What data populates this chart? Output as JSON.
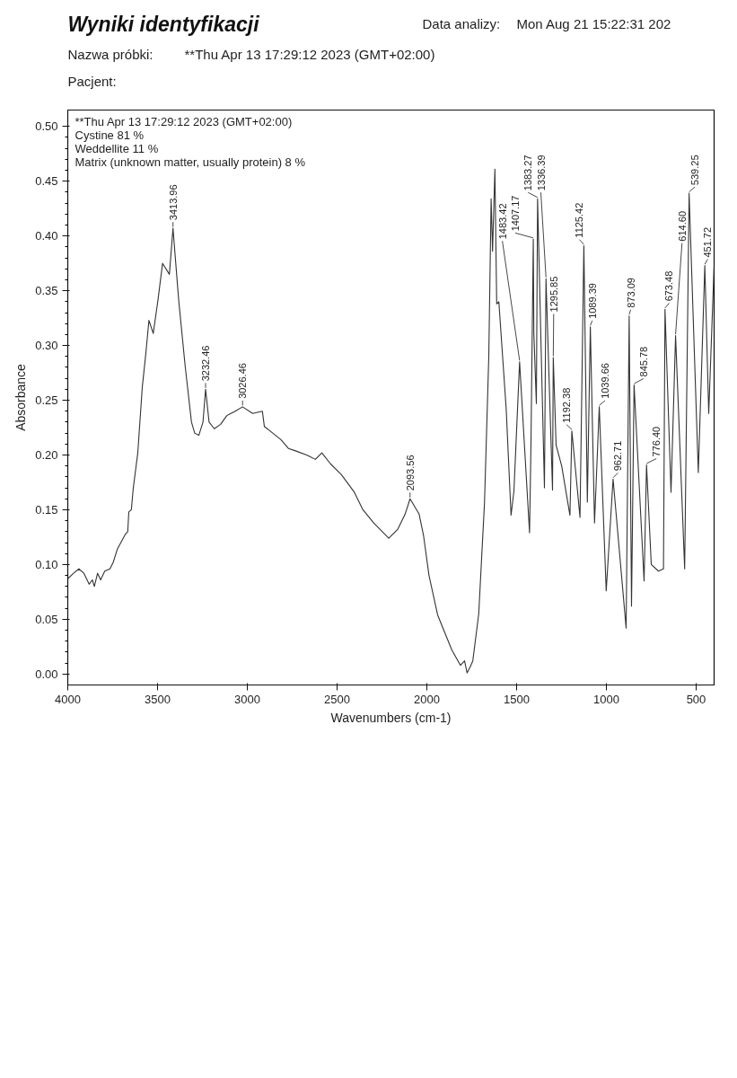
{
  "chart_data": {
    "type": "line",
    "title": "Wyniki identyfikacji",
    "xlabel": "Wavenumbers (cm-1)",
    "ylabel": "Absorbance",
    "color": "#333333",
    "x": [
      4000,
      3968,
      3938,
      3910,
      3881,
      3863,
      3852,
      3834,
      3817,
      3794,
      3765,
      3747,
      3724,
      3678,
      3666,
      3660,
      3646,
      3635,
      3610,
      3585,
      3565,
      3548,
      3524,
      3498,
      3472,
      3434,
      3413.96,
      3382,
      3346,
      3311,
      3293,
      3270,
      3247,
      3232.46,
      3213,
      3184,
      3149,
      3114,
      3067,
      3026.46,
      2970,
      2916,
      2905,
      2874,
      2813,
      2771,
      2735,
      2669,
      2621,
      2585,
      2537,
      2476,
      2404,
      2356,
      2296,
      2248,
      2212,
      2163,
      2121,
      2093.56,
      2043,
      2018,
      1988,
      1940,
      1861,
      1813,
      1790,
      1776,
      1760,
      1744,
      1711,
      1679,
      1655,
      1642,
      1634,
      1621,
      1611,
      1599,
      1558,
      1531,
      1515,
      1483.42,
      1428,
      1420,
      1407.17,
      1404,
      1390,
      1383.27,
      1345,
      1336.39,
      1300,
      1295.85,
      1280,
      1249,
      1203,
      1192.38,
      1147,
      1125.42,
      1106,
      1089.39,
      1066,
      1039.66,
      1001,
      962.71,
      890,
      873.09,
      860,
      845.78,
      790,
      776.4,
      750,
      710,
      682,
      673.48,
      640,
      614.6,
      564,
      539.25,
      488,
      451.72,
      430,
      400
    ],
    "values": [
      0.087,
      0.092,
      0.096,
      0.092,
      0.082,
      0.086,
      0.08,
      0.092,
      0.086,
      0.094,
      0.096,
      0.102,
      0.114,
      0.128,
      0.13,
      0.148,
      0.15,
      0.17,
      0.202,
      0.262,
      0.293,
      0.323,
      0.311,
      0.341,
      0.375,
      0.365,
      0.407,
      0.341,
      0.281,
      0.23,
      0.22,
      0.218,
      0.23,
      0.26,
      0.23,
      0.224,
      0.228,
      0.236,
      0.24,
      0.244,
      0.238,
      0.24,
      0.226,
      0.222,
      0.214,
      0.206,
      0.204,
      0.2,
      0.196,
      0.202,
      0.192,
      0.182,
      0.166,
      0.15,
      0.138,
      0.13,
      0.124,
      0.132,
      0.146,
      0.16,
      0.146,
      0.126,
      0.09,
      0.054,
      0.022,
      0.008,
      0.012,
      0.001,
      0.006,
      0.012,
      0.055,
      0.156,
      0.29,
      0.434,
      0.386,
      0.461,
      0.338,
      0.34,
      0.242,
      0.145,
      0.167,
      0.285,
      0.129,
      0.21,
      0.397,
      0.311,
      0.247,
      0.434,
      0.17,
      0.361,
      0.168,
      0.289,
      0.209,
      0.19,
      0.145,
      0.222,
      0.143,
      0.391,
      0.157,
      0.317,
      0.138,
      0.244,
      0.076,
      0.178,
      0.042,
      0.327,
      0.062,
      0.264,
      0.085,
      0.191,
      0.1,
      0.094,
      0.096,
      0.333,
      0.166,
      0.309,
      0.096,
      0.439,
      0.184,
      0.373,
      0.238,
      0.373
    ],
    "xlim": [
      4000,
      400
    ],
    "ylim": [
      -0.01,
      0.515
    ],
    "xticks": [
      4000,
      3500,
      3000,
      2500,
      2000,
      1500,
      1000,
      500
    ],
    "yticks": [
      {
        "value": 0,
        "label": "0.00"
      },
      {
        "value": 0.05,
        "label": "0.05"
      },
      {
        "value": 0.1,
        "label": "0.10"
      },
      {
        "value": 0.15,
        "label": "0.15"
      },
      {
        "value": 0.2,
        "label": "0.20"
      },
      {
        "value": 0.25,
        "label": "0.25"
      },
      {
        "value": 0.3,
        "label": "0.30"
      },
      {
        "value": 0.35,
        "label": "0.35"
      },
      {
        "value": 0.4,
        "label": "0.40"
      },
      {
        "value": 0.45,
        "label": "0.45"
      },
      {
        "value": 0.5,
        "label": "0.50"
      }
    ],
    "annotations": [
      "Nazwa próbki:",
      "**Thu Apr 13 17:29:12 2023 (GMT+02:00)",
      "Pacjent:",
      "Data analizy:",
      "Mon Aug 21 15:22:31 202",
      "**Thu Apr 13 17:29:12 2023 (GMT+02:00)",
      "Cystine 81 %",
      "Weddellite 11 %",
      "Matrix (unknown matter, usually protein) 8 %",
      {
        "text": "3413.96",
        "x": 3413.96,
        "y": 0.407
      },
      {
        "text": "3232.46",
        "x": 3232.46,
        "y": 0.26
      },
      {
        "text": "3026.46",
        "x": 3026.46,
        "y": 0.244
      },
      {
        "text": "2093.56",
        "x": 2093.56,
        "y": 0.16
      },
      {
        "text": "1483.42",
        "x": 1483.42,
        "y": 0.285
      },
      {
        "text": "1407.17",
        "x": 1407.17,
        "y": 0.397
      },
      {
        "text": "1383.27",
        "x": 1383.27,
        "y": 0.434
      },
      {
        "text": "1336.39",
        "x": 1336.39,
        "y": 0.361
      },
      {
        "text": "1295.85",
        "x": 1295.85,
        "y": 0.289
      },
      {
        "text": "1192.38",
        "x": 1192.38,
        "y": 0.222
      },
      {
        "text": "1125.42",
        "x": 1125.42,
        "y": 0.391
      },
      {
        "text": "1089.39",
        "x": 1089.39,
        "y": 0.317
      },
      {
        "text": "1039.66",
        "x": 1039.66,
        "y": 0.244
      },
      {
        "text": "962.71",
        "x": 962.71,
        "y": 0.178
      },
      {
        "text": "873.09",
        "x": 873.09,
        "y": 0.327
      },
      {
        "text": "845.78",
        "x": 845.78,
        "y": 0.264
      },
      {
        "text": "776.40",
        "x": 776.4,
        "y": 0.191
      },
      {
        "text": "673.48",
        "x": 673.48,
        "y": 0.333
      },
      {
        "text": "614.60",
        "x": 614.6,
        "y": 0.309
      },
      {
        "text": "539.25",
        "x": 539.25,
        "y": 0.439
      },
      {
        "text": "451.72",
        "x": 451.72,
        "y": 0.373
      }
    ]
  }
}
